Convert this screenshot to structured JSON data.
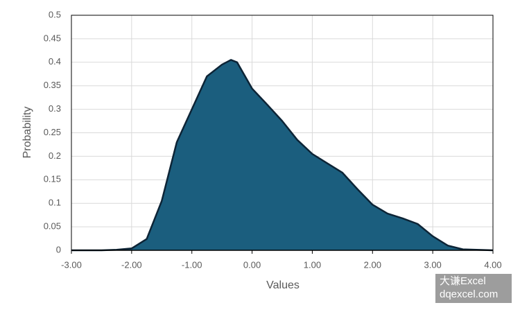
{
  "chart_data": {
    "type": "area",
    "x_label": "Values",
    "y_label": "Probability",
    "x": [
      -3,
      -2.5,
      -2.25,
      -2,
      -1.75,
      -1.5,
      -1.25,
      -1,
      -0.75,
      -0.5,
      -0.35,
      -0.25,
      0,
      0.25,
      0.5,
      0.75,
      1,
      1.25,
      1.5,
      1.75,
      2,
      2.25,
      2.5,
      2.75,
      3,
      3.25,
      3.5,
      4
    ],
    "series": [
      {
        "color": "#1b5e7e",
        "values": [
          0,
          0,
          0.001,
          0.004,
          0.024,
          0.105,
          0.23,
          0.3,
          0.37,
          0.395,
          0.405,
          0.4,
          0.344,
          0.31,
          0.275,
          0.235,
          0.205,
          0.185,
          0.165,
          0.13,
          0.097,
          0.078,
          0.068,
          0.056,
          0.03,
          0.01,
          0.002,
          0
        ]
      }
    ],
    "line_color": "#0d2436",
    "xlim": [
      -3,
      4
    ],
    "xticks": [
      {
        "value": -3,
        "label": "-3.00"
      },
      {
        "value": -2,
        "label": "-2.00"
      },
      {
        "value": -1,
        "label": "-1.00"
      },
      {
        "value": 0,
        "label": "0.00"
      },
      {
        "value": 1,
        "label": "1.00"
      },
      {
        "value": 2,
        "label": "2.00"
      },
      {
        "value": 3,
        "label": "3.00"
      },
      {
        "value": 4,
        "label": "4.00"
      }
    ],
    "ylim": [
      0,
      0.5
    ],
    "yticks": [
      0,
      0.05,
      0.1,
      0.15,
      0.2,
      0.25,
      0.3,
      0.35,
      0.4,
      0.45,
      0.5
    ],
    "grid": true
  },
  "watermark": {
    "line1": "大谦Excel",
    "line2": "dqexcel.com"
  }
}
